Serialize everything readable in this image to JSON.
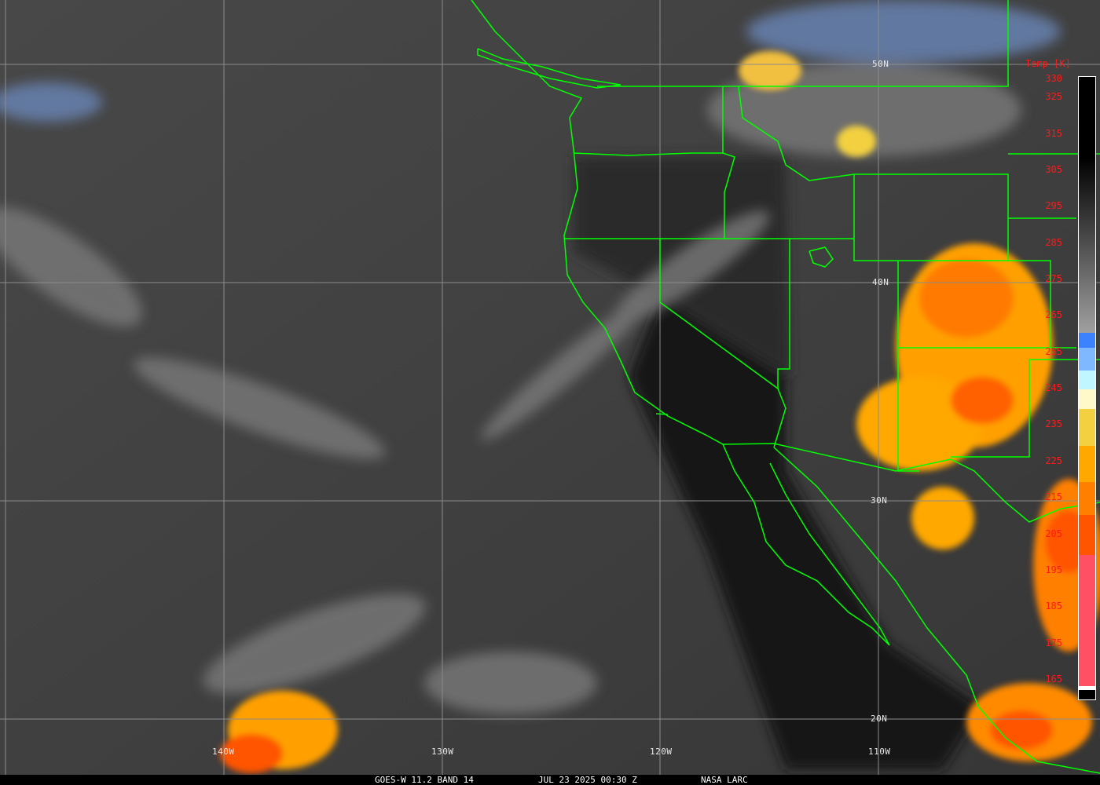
{
  "caption": {
    "product": "GOES-W 11.2 BAND 14",
    "datetime": "JUL 23 2025 00:30 Z",
    "source": "NASA LARC"
  },
  "latitude_labels": [
    "50N",
    "40N",
    "30N",
    "20N"
  ],
  "longitude_labels": [
    "140W",
    "130W",
    "120W",
    "110W"
  ],
  "colorbar": {
    "title": "Temp [K]",
    "tick_labels": [
      "330",
      "325",
      "315",
      "305",
      "295",
      "285",
      "275",
      "265",
      "255",
      "245",
      "235",
      "225",
      "215",
      "205",
      "195",
      "185",
      "175",
      "165"
    ],
    "range_k": [
      165,
      330
    ],
    "stops_k": [
      {
        "from": 330,
        "to": 308.6,
        "color": "#000000"
      },
      {
        "from": 308.6,
        "to": 260.5,
        "color_start": "#000000",
        "color_end": "#a0a0a0"
      },
      {
        "from": 260.5,
        "to": 256.4,
        "color": "#3c82ff"
      },
      {
        "from": 256.4,
        "to": 250.2,
        "color": "#80b8ff"
      },
      {
        "from": 250.2,
        "to": 245,
        "color": "#bff6ff"
      },
      {
        "from": 245,
        "to": 239.6,
        "color": "#fff8c8"
      },
      {
        "from": 239.6,
        "to": 229.5,
        "color": "#f2d040"
      },
      {
        "from": 229.5,
        "to": 219.6,
        "color": "#ffa800"
      },
      {
        "from": 219.6,
        "to": 210.5,
        "color": "#ff8000"
      },
      {
        "from": 210.5,
        "to": 199.5,
        "color": "#ff5500"
      },
      {
        "from": 199.5,
        "to": 163.5,
        "color": "#ff5064"
      },
      {
        "from": 163.5,
        "to": 162.5,
        "color": "#ffffff"
      },
      {
        "from": 162.5,
        "to": 160,
        "color": "#000000"
      }
    ]
  },
  "colors": {
    "boundaries": "#00ff00",
    "grid": "#8c8c8c",
    "labels": "#ff1a1a"
  }
}
